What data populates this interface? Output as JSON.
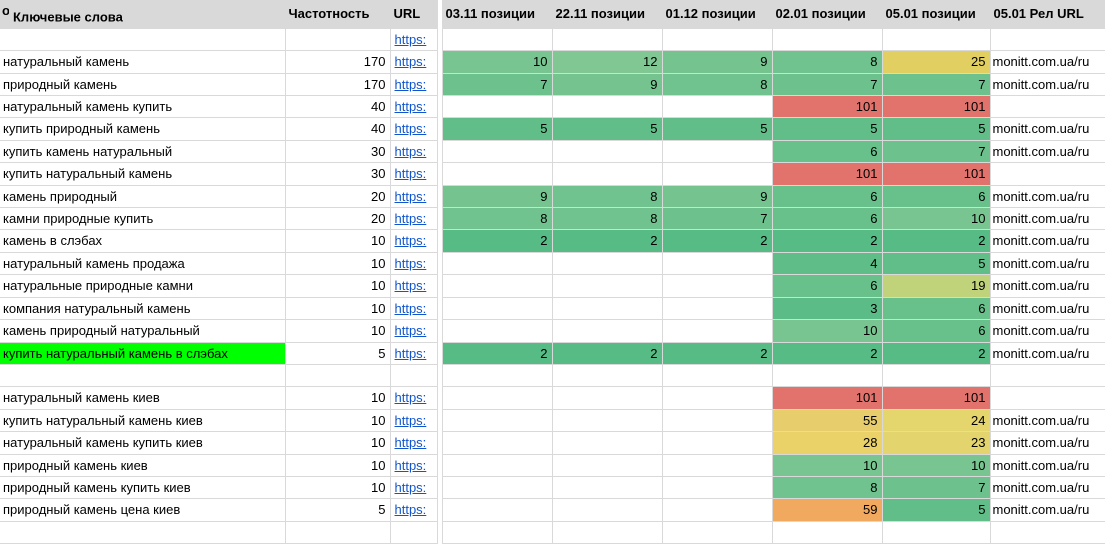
{
  "table": {
    "header": {
      "partial_left": "о",
      "keyword": "Ключевые слова",
      "frequency": "Частотность",
      "url": "URL",
      "pos1": "03.11 позиции",
      "pos2": "22.11 позиции",
      "pos3": "01.12 позиции",
      "pos4": "02.01 позиции",
      "pos5": "05.01 позиции",
      "rel_url": "05.01 Рел URL"
    },
    "colors": {
      "header_bg": "#d9d9d9",
      "gridline": "#d9d9d9",
      "link": "#1155cc",
      "highlight_green": "#00ff00",
      "scale_green": "#57bb86",
      "scale_yellow": "#e2cf62",
      "scale_orange": "#f0a95e",
      "scale_red": "#e2736c"
    },
    "rows": [
      {
        "keyword": "",
        "kw_bg": "",
        "freq": "",
        "url": "https:",
        "positions": [
          {
            "v": "",
            "bg": ""
          },
          {
            "v": "",
            "bg": ""
          },
          {
            "v": "",
            "bg": ""
          },
          {
            "v": "",
            "bg": ""
          },
          {
            "v": "",
            "bg": ""
          }
        ],
        "rel": ""
      },
      {
        "keyword": "натуральный камень",
        "kw_bg": "",
        "freq": "170",
        "url": "https:",
        "positions": [
          {
            "v": "10",
            "bg": "#79c591"
          },
          {
            "v": "12",
            "bg": "#80c794"
          },
          {
            "v": "9",
            "bg": "#75c490"
          },
          {
            "v": "8",
            "bg": "#70c28e"
          },
          {
            "v": "25",
            "bg": "#e2cf62"
          }
        ],
        "rel": "monitt.com.ua/ru"
      },
      {
        "keyword": "природный камень",
        "kw_bg": "",
        "freq": "170",
        "url": "https:",
        "positions": [
          {
            "v": "7",
            "bg": "#6cc18d"
          },
          {
            "v": "9",
            "bg": "#75c490"
          },
          {
            "v": "8",
            "bg": "#70c28e"
          },
          {
            "v": "7",
            "bg": "#6cc18d"
          },
          {
            "v": "7",
            "bg": "#6cc18d"
          }
        ],
        "rel": "monitt.com.ua/ru"
      },
      {
        "keyword": "натуральный камень купить",
        "kw_bg": "",
        "freq": "40",
        "url": "https:",
        "positions": [
          {
            "v": "",
            "bg": ""
          },
          {
            "v": "",
            "bg": ""
          },
          {
            "v": "",
            "bg": ""
          },
          {
            "v": "101",
            "bg": "#e2736c"
          },
          {
            "v": "101",
            "bg": "#e2736c"
          }
        ],
        "rel": ""
      },
      {
        "keyword": "купить природный камень",
        "kw_bg": "",
        "freq": "40",
        "url": "https:",
        "positions": [
          {
            "v": "5",
            "bg": "#62be89"
          },
          {
            "v": "5",
            "bg": "#62be89"
          },
          {
            "v": "5",
            "bg": "#62be89"
          },
          {
            "v": "5",
            "bg": "#62be89"
          },
          {
            "v": "5",
            "bg": "#62be89"
          }
        ],
        "rel": "monitt.com.ua/ru"
      },
      {
        "keyword": "купить камень натуральный",
        "kw_bg": "",
        "freq": "30",
        "url": "https:",
        "positions": [
          {
            "v": "",
            "bg": ""
          },
          {
            "v": "",
            "bg": ""
          },
          {
            "v": "",
            "bg": ""
          },
          {
            "v": "6",
            "bg": "#68c08b"
          },
          {
            "v": "7",
            "bg": "#6cc18d"
          }
        ],
        "rel": "monitt.com.ua/ru"
      },
      {
        "keyword": "купить натуральный камень",
        "kw_bg": "",
        "freq": "30",
        "url": "https:",
        "positions": [
          {
            "v": "",
            "bg": ""
          },
          {
            "v": "",
            "bg": ""
          },
          {
            "v": "",
            "bg": ""
          },
          {
            "v": "101",
            "bg": "#e2736c"
          },
          {
            "v": "101",
            "bg": "#e2736c"
          }
        ],
        "rel": ""
      },
      {
        "keyword": "камень природный",
        "kw_bg": "",
        "freq": "20",
        "url": "https:",
        "positions": [
          {
            "v": "9",
            "bg": "#75c490"
          },
          {
            "v": "8",
            "bg": "#70c28e"
          },
          {
            "v": "9",
            "bg": "#75c490"
          },
          {
            "v": "6",
            "bg": "#68c08b"
          },
          {
            "v": "6",
            "bg": "#68c08b"
          }
        ],
        "rel": "monitt.com.ua/ru"
      },
      {
        "keyword": "камни природные купить",
        "kw_bg": "",
        "freq": "20",
        "url": "https:",
        "positions": [
          {
            "v": "8",
            "bg": "#70c28e"
          },
          {
            "v": "8",
            "bg": "#70c28e"
          },
          {
            "v": "7",
            "bg": "#6cc18d"
          },
          {
            "v": "6",
            "bg": "#68c08b"
          },
          {
            "v": "10",
            "bg": "#79c591"
          }
        ],
        "rel": "monitt.com.ua/ru"
      },
      {
        "keyword": "камень в слэбах",
        "kw_bg": "",
        "freq": "10",
        "url": "https:",
        "positions": [
          {
            "v": "2",
            "bg": "#57bb86"
          },
          {
            "v": "2",
            "bg": "#57bb86"
          },
          {
            "v": "2",
            "bg": "#57bb86"
          },
          {
            "v": "2",
            "bg": "#57bb86"
          },
          {
            "v": "2",
            "bg": "#57bb86"
          }
        ],
        "rel": "monitt.com.ua/ru"
      },
      {
        "keyword": "натуральный камень продажа",
        "kw_bg": "",
        "freq": "10",
        "url": "https:",
        "positions": [
          {
            "v": "",
            "bg": ""
          },
          {
            "v": "",
            "bg": ""
          },
          {
            "v": "",
            "bg": ""
          },
          {
            "v": "4",
            "bg": "#5fbd88"
          },
          {
            "v": "5",
            "bg": "#62be89"
          }
        ],
        "rel": "monitt.com.ua/ru"
      },
      {
        "keyword": "натуральные природные камни",
        "kw_bg": "",
        "freq": "10",
        "url": "https:",
        "positions": [
          {
            "v": "",
            "bg": ""
          },
          {
            "v": "",
            "bg": ""
          },
          {
            "v": "",
            "bg": ""
          },
          {
            "v": "6",
            "bg": "#68c08b"
          },
          {
            "v": "19",
            "bg": "#c0d37b"
          }
        ],
        "rel": "monitt.com.ua/ru"
      },
      {
        "keyword": "компания натуральный камень",
        "kw_bg": "",
        "freq": "10",
        "url": "https:",
        "positions": [
          {
            "v": "",
            "bg": ""
          },
          {
            "v": "",
            "bg": ""
          },
          {
            "v": "",
            "bg": ""
          },
          {
            "v": "3",
            "bg": "#5bbc87"
          },
          {
            "v": "6",
            "bg": "#68c08b"
          }
        ],
        "rel": "monitt.com.ua/ru"
      },
      {
        "keyword": "камень природный натуральный",
        "kw_bg": "",
        "freq": "10",
        "url": "https:",
        "positions": [
          {
            "v": "",
            "bg": ""
          },
          {
            "v": "",
            "bg": ""
          },
          {
            "v": "",
            "bg": ""
          },
          {
            "v": "10",
            "bg": "#79c591"
          },
          {
            "v": "6",
            "bg": "#68c08b"
          }
        ],
        "rel": "monitt.com.ua/ru"
      },
      {
        "keyword": "купить натуральный камень в слэбах",
        "kw_bg": "#00ff00",
        "freq": "5",
        "url": "https:",
        "positions": [
          {
            "v": "2",
            "bg": "#57bb86"
          },
          {
            "v": "2",
            "bg": "#57bb86"
          },
          {
            "v": "2",
            "bg": "#57bb86"
          },
          {
            "v": "2",
            "bg": "#57bb86"
          },
          {
            "v": "2",
            "bg": "#57bb86"
          }
        ],
        "rel": "monitt.com.ua/ru"
      },
      {
        "keyword": "",
        "kw_bg": "",
        "freq": "",
        "url": "",
        "positions": [
          {
            "v": "",
            "bg": ""
          },
          {
            "v": "",
            "bg": ""
          },
          {
            "v": "",
            "bg": ""
          },
          {
            "v": "",
            "bg": ""
          },
          {
            "v": "",
            "bg": ""
          }
        ],
        "rel": ""
      },
      {
        "keyword": "натуральный камень киев",
        "kw_bg": "",
        "freq": "10",
        "url": "https:",
        "positions": [
          {
            "v": "",
            "bg": ""
          },
          {
            "v": "",
            "bg": ""
          },
          {
            "v": "",
            "bg": ""
          },
          {
            "v": "101",
            "bg": "#e2736c"
          },
          {
            "v": "101",
            "bg": "#e2736c"
          }
        ],
        "rel": ""
      },
      {
        "keyword": "купить натуральный камень киев",
        "kw_bg": "",
        "freq": "10",
        "url": "https:",
        "positions": [
          {
            "v": "",
            "bg": ""
          },
          {
            "v": "",
            "bg": ""
          },
          {
            "v": "",
            "bg": ""
          },
          {
            "v": "55",
            "bg": "#e7cd6b"
          },
          {
            "v": "24",
            "bg": "#e5d56d"
          }
        ],
        "rel": "monitt.com.ua/ru"
      },
      {
        "keyword": "натуральный камень купить киев",
        "kw_bg": "",
        "freq": "10",
        "url": "https:",
        "positions": [
          {
            "v": "",
            "bg": ""
          },
          {
            "v": "",
            "bg": ""
          },
          {
            "v": "",
            "bg": ""
          },
          {
            "v": "28",
            "bg": "#ead268"
          },
          {
            "v": "23",
            "bg": "#e3d46e"
          }
        ],
        "rel": "monitt.com.ua/ru"
      },
      {
        "keyword": "природный камень киев",
        "kw_bg": "",
        "freq": "10",
        "url": "https:",
        "positions": [
          {
            "v": "",
            "bg": ""
          },
          {
            "v": "",
            "bg": ""
          },
          {
            "v": "",
            "bg": ""
          },
          {
            "v": "10",
            "bg": "#79c591"
          },
          {
            "v": "10",
            "bg": "#79c591"
          }
        ],
        "rel": "monitt.com.ua/ru"
      },
      {
        "keyword": "природный камень купить киев",
        "kw_bg": "",
        "freq": "10",
        "url": "https:",
        "positions": [
          {
            "v": "",
            "bg": ""
          },
          {
            "v": "",
            "bg": ""
          },
          {
            "v": "",
            "bg": ""
          },
          {
            "v": "8",
            "bg": "#70c28e"
          },
          {
            "v": "7",
            "bg": "#6cc18d"
          }
        ],
        "rel": "monitt.com.ua/ru"
      },
      {
        "keyword": "природный камень цена киев",
        "kw_bg": "",
        "freq": "5",
        "url": "https:",
        "positions": [
          {
            "v": "",
            "bg": ""
          },
          {
            "v": "",
            "bg": ""
          },
          {
            "v": "",
            "bg": ""
          },
          {
            "v": "59",
            "bg": "#f0a95e"
          },
          {
            "v": "5",
            "bg": "#62be89"
          }
        ],
        "rel": "monitt.com.ua/ru"
      },
      {
        "keyword": "",
        "kw_bg": "",
        "freq": "",
        "url": "",
        "positions": [
          {
            "v": "",
            "bg": ""
          },
          {
            "v": "",
            "bg": ""
          },
          {
            "v": "",
            "bg": ""
          },
          {
            "v": "",
            "bg": ""
          },
          {
            "v": "",
            "bg": ""
          }
        ],
        "rel": ""
      }
    ]
  }
}
